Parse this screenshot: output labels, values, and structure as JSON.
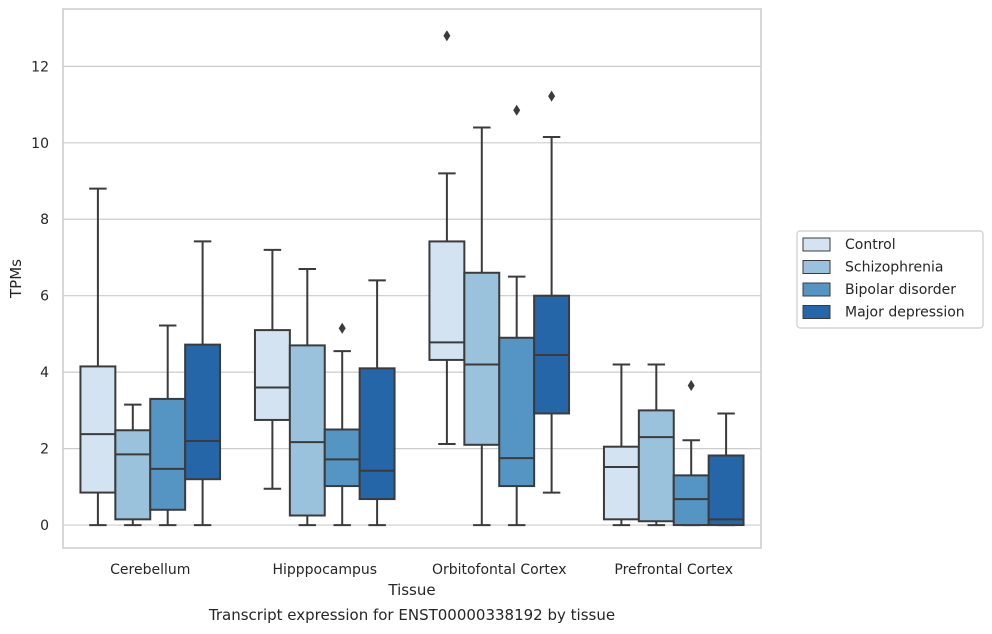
{
  "caption": "Transcript expression for ENST00000338192 by tissue",
  "chart_data": {
    "type": "box",
    "xlabel": "Tissue",
    "ylabel": "TPMs",
    "ylim": [
      -0.6,
      13.5
    ],
    "yticks": [
      0,
      2,
      4,
      6,
      8,
      10,
      12
    ],
    "grid": "horizontal",
    "legend_position": "right",
    "categories": [
      "Cerebellum",
      "Hipppocampus",
      "Orbitofontal Cortex",
      "Prefrontal Cortex"
    ],
    "series": [
      {
        "name": "Control",
        "color": "#d3e3f2",
        "boxes": [
          {
            "whisker_low": 0.0,
            "q1": 0.85,
            "median": 2.38,
            "q3": 4.15,
            "whisker_high": 8.8,
            "outliers": []
          },
          {
            "whisker_low": 0.95,
            "q1": 2.75,
            "median": 3.6,
            "q3": 5.1,
            "whisker_high": 7.2,
            "outliers": []
          },
          {
            "whisker_low": 2.12,
            "q1": 4.32,
            "median": 4.78,
            "q3": 7.42,
            "whisker_high": 9.2,
            "outliers": [
              12.8
            ]
          },
          {
            "whisker_low": 0.0,
            "q1": 0.15,
            "median": 1.52,
            "q3": 2.05,
            "whisker_high": 4.2,
            "outliers": []
          }
        ]
      },
      {
        "name": "Schizophrenia",
        "color": "#9ac2dc",
        "boxes": [
          {
            "whisker_low": 0.0,
            "q1": 0.15,
            "median": 1.85,
            "q3": 2.48,
            "whisker_high": 3.15,
            "outliers": []
          },
          {
            "whisker_low": 0.0,
            "q1": 0.25,
            "median": 2.17,
            "q3": 4.7,
            "whisker_high": 6.7,
            "outliers": []
          },
          {
            "whisker_low": 0.0,
            "q1": 2.1,
            "median": 4.2,
            "q3": 6.6,
            "whisker_high": 10.4,
            "outliers": []
          },
          {
            "whisker_low": 0.0,
            "q1": 0.1,
            "median": 2.3,
            "q3": 3.0,
            "whisker_high": 4.2,
            "outliers": []
          }
        ]
      },
      {
        "name": "Bipolar disorder",
        "color": "#5495c4",
        "boxes": [
          {
            "whisker_low": 0.0,
            "q1": 0.4,
            "median": 1.47,
            "q3": 3.3,
            "whisker_high": 5.22,
            "outliers": []
          },
          {
            "whisker_low": 0.0,
            "q1": 1.02,
            "median": 1.72,
            "q3": 2.5,
            "whisker_high": 4.55,
            "outliers": [
              5.15
            ]
          },
          {
            "whisker_low": 0.0,
            "q1": 1.02,
            "median": 1.75,
            "q3": 4.9,
            "whisker_high": 6.5,
            "outliers": [
              10.85
            ]
          },
          {
            "whisker_low": 0.0,
            "q1": 0.0,
            "median": 0.68,
            "q3": 1.3,
            "whisker_high": 2.22,
            "outliers": [
              3.65
            ]
          }
        ]
      },
      {
        "name": "Major depression",
        "color": "#2566a8",
        "boxes": [
          {
            "whisker_low": 0.0,
            "q1": 1.2,
            "median": 2.2,
            "q3": 4.72,
            "whisker_high": 7.42,
            "outliers": []
          },
          {
            "whisker_low": 0.0,
            "q1": 0.68,
            "median": 1.42,
            "q3": 4.1,
            "whisker_high": 6.4,
            "outliers": []
          },
          {
            "whisker_low": 0.85,
            "q1": 2.92,
            "median": 4.45,
            "q3": 6.0,
            "whisker_high": 10.15,
            "outliers": [
              11.22
            ]
          },
          {
            "whisker_low": 0.0,
            "q1": 0.0,
            "median": 0.15,
            "q3": 1.82,
            "whisker_high": 2.92,
            "outliers": []
          }
        ]
      }
    ]
  }
}
